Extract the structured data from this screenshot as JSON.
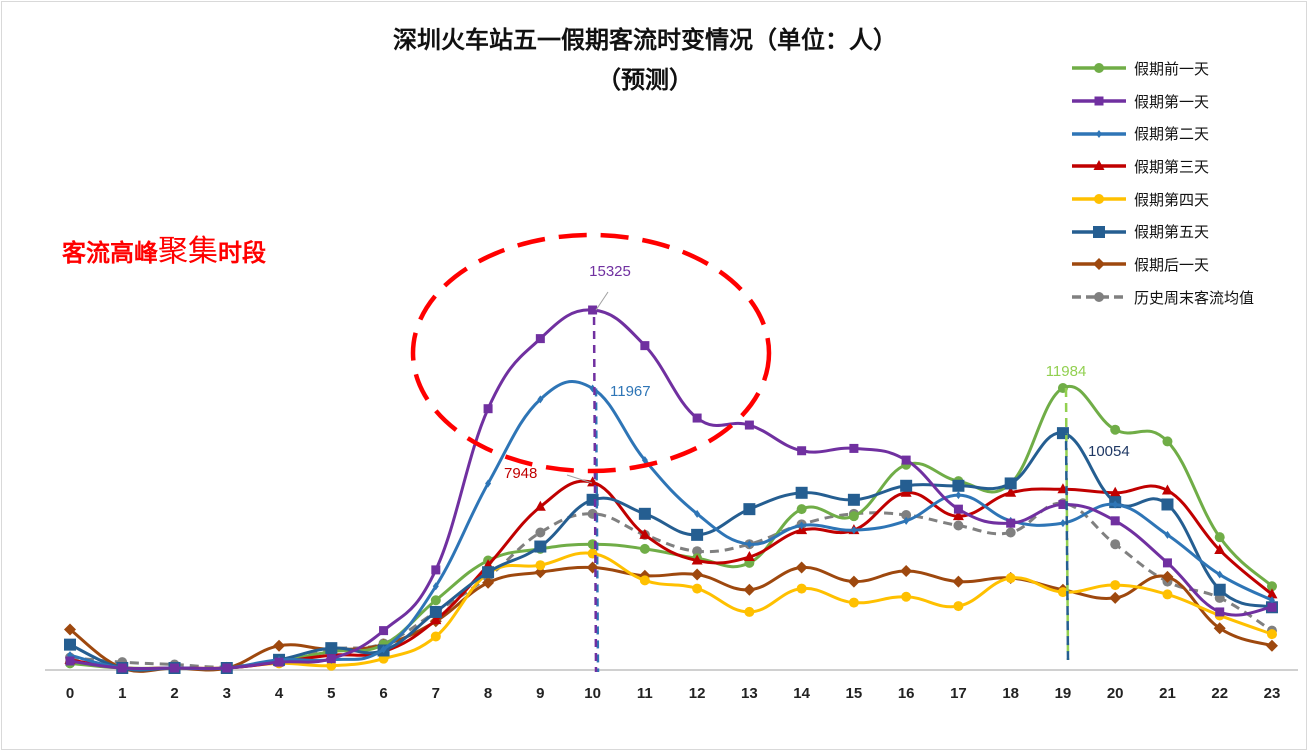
{
  "chart_data": {
    "type": "line",
    "title": "深圳火车站五一假期客流时变情况（单位：人）",
    "subtitle": "（预测）",
    "annotation": {
      "prefix": "客流高峰",
      "emphasis": "聚集",
      "suffix": "时段"
    },
    "xlabel": "",
    "ylabel": "",
    "x": [
      0,
      1,
      2,
      3,
      4,
      5,
      6,
      7,
      8,
      9,
      10,
      11,
      12,
      13,
      14,
      15,
      16,
      17,
      18,
      19,
      20,
      21,
      22,
      23
    ],
    "ylim": [
      0,
      16000
    ],
    "grid": false,
    "legend_position": "right",
    "series": [
      {
        "name": "假期前一天",
        "color": "#70ad47",
        "marker": "circle",
        "dashed": false,
        "values": [
          200,
          0,
          0,
          0,
          300,
          700,
          1000,
          2900,
          4600,
          5100,
          5300,
          5100,
          4700,
          4500,
          6800,
          6500,
          8700,
          8000,
          7900,
          11984,
          10200,
          9700,
          5600,
          3500
        ]
      },
      {
        "name": "假期第一天",
        "color": "#7030a0",
        "marker": "square",
        "dashed": false,
        "values": [
          300,
          0,
          0,
          0,
          250,
          400,
          1600,
          4200,
          11100,
          14100,
          15325,
          13800,
          10700,
          10400,
          9300,
          9400,
          8900,
          6800,
          6200,
          7000,
          6300,
          4500,
          2400,
          2600
        ]
      },
      {
        "name": "假期第二天",
        "color": "#2e75b6",
        "marker": "diamond-small",
        "dashed": false,
        "values": [
          550,
          0,
          0,
          0,
          350,
          350,
          800,
          3500,
          7900,
          11500,
          11967,
          8900,
          6600,
          5300,
          6100,
          5900,
          6300,
          7400,
          6300,
          6200,
          7000,
          5700,
          4000,
          2900
        ]
      },
      {
        "name": "假期第三天",
        "color": "#c00000",
        "marker": "triangle",
        "dashed": false,
        "values": [
          350,
          0,
          0,
          0,
          250,
          550,
          700,
          2050,
          4400,
          6900,
          7948,
          5700,
          4600,
          4750,
          5900,
          5900,
          7500,
          6500,
          7500,
          7650,
          7500,
          7600,
          5050,
          3150
        ]
      },
      {
        "name": "假期第四天",
        "color": "#ffc000",
        "marker": "circle",
        "dashed": false,
        "values": [
          250,
          0,
          0,
          0,
          200,
          100,
          400,
          1350,
          4050,
          4400,
          4900,
          3750,
          3400,
          2400,
          3400,
          2800,
          3050,
          2650,
          3850,
          3250,
          3550,
          3150,
          2250,
          1450
        ]
      },
      {
        "name": "假期第五天",
        "color": "#255e91",
        "marker": "square-large",
        "dashed": false,
        "values": [
          1000,
          0,
          0,
          0,
          350,
          850,
          750,
          2400,
          4100,
          5200,
          7200,
          6600,
          5700,
          6800,
          7500,
          7200,
          7800,
          7800,
          7900,
          10054,
          7100,
          7000,
          3350,
          2600
        ]
      },
      {
        "name": "假期后一天",
        "color": "#9e480e",
        "marker": "diamond",
        "dashed": false,
        "values": [
          1650,
          0,
          0,
          0,
          950,
          800,
          1000,
          2000,
          3650,
          4100,
          4300,
          3950,
          4000,
          3350,
          4300,
          3700,
          4150,
          3700,
          3850,
          3350,
          3000,
          3900,
          1700,
          950
        ]
      },
      {
        "name": "历史周末客流均值",
        "color": "#808080",
        "marker": "circle",
        "dashed": true,
        "values": [
          450,
          250,
          150,
          50,
          350,
          800,
          1050,
          2400,
          3900,
          5800,
          6600,
          5700,
          5000,
          5300,
          6150,
          6600,
          6550,
          6100,
          5800,
          7050,
          5300,
          3700,
          3000,
          1600
        ]
      }
    ],
    "data_labels": [
      {
        "text": "15325",
        "x": 10,
        "series": "假期第一天",
        "color": "#7030a0"
      },
      {
        "text": "11967",
        "x": 10,
        "series": "假期第二天",
        "color": "#2e75b6"
      },
      {
        "text": "7948",
        "x": 10,
        "series": "假期第三天",
        "color": "#c00000"
      },
      {
        "text": "11984",
        "x": 19,
        "series": "假期前一天",
        "color": "#92d050"
      },
      {
        "text": "10054",
        "x": 19,
        "series": "假期第五天",
        "color": "#1f3864"
      }
    ],
    "highlight_color": "#ff0000"
  }
}
